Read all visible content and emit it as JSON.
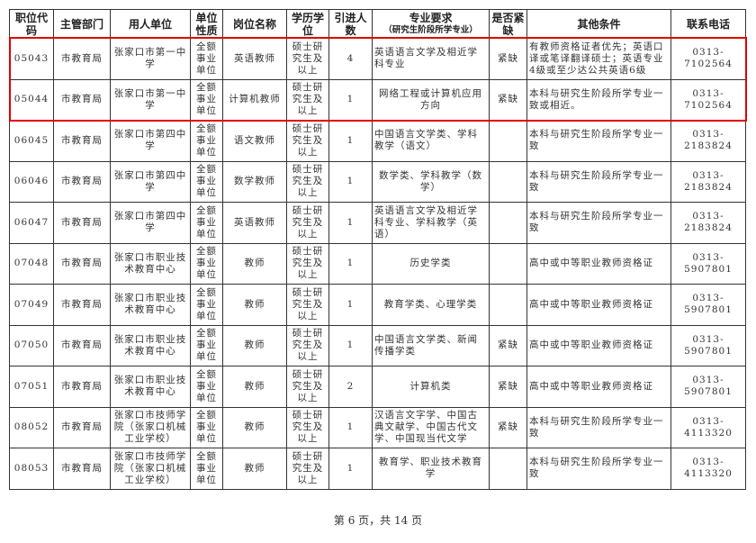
{
  "headers": [
    {
      "main": "职位代码"
    },
    {
      "main": "主管部门"
    },
    {
      "main": "用人单位"
    },
    {
      "main": "单位性质"
    },
    {
      "main": "岗位名称"
    },
    {
      "main": "学历学位"
    },
    {
      "main": "引进人数"
    },
    {
      "main": "专业要求",
      "sub": "（研究生阶段所学专业）"
    },
    {
      "main": "是否紧缺"
    },
    {
      "main": "其他条件"
    },
    {
      "main": "联系电话"
    }
  ],
  "rows": [
    [
      "05043",
      "市教育局",
      "张家口市第一中学",
      "全额事业单位",
      "英语教师",
      "硕士研究生及以上",
      "4",
      "英语语言文学及相近学科专业",
      "紧缺",
      "有教师资格证者优先；英语口译或笔译翻译硕士；英语专业4级或至少达公共英语6级",
      "0313-7102564"
    ],
    [
      "05044",
      "市教育局",
      "张家口市第一中学",
      "全额事业单位",
      "计算机教师",
      "硕士研究生及以上",
      "1",
      "网络工程或计算机应用方向",
      "紧缺",
      "本科与研究生阶段所学专业一致或相近。",
      "0313-7102564"
    ],
    [
      "06045",
      "市教育局",
      "张家口市第四中学",
      "全额事业单位",
      "语文教师",
      "硕士研究生及以上",
      "1",
      "中国语言文学类、学科教学（语文）",
      "",
      "本科与研究生阶段所学专业一致",
      "0313-2183824"
    ],
    [
      "06046",
      "市教育局",
      "张家口市第四中学",
      "全额事业单位",
      "数学教师",
      "硕士研究生及以上",
      "1",
      "数学类、学科教学（数学）",
      "",
      "本科与研究生阶段所学专业一致",
      "0313-2183824"
    ],
    [
      "06047",
      "市教育局",
      "张家口市第四中学",
      "全额事业单位",
      "英语教师",
      "硕士研究生及以上",
      "1",
      "英语语言文学及相近学科专业、学科教学（英语）",
      "",
      "本科与研究生阶段所学专业一致",
      "0313-2183824"
    ],
    [
      "07048",
      "市教育局",
      "张家口市职业技术教育中心",
      "全额事业单位",
      "教师",
      "硕士研究生及以上",
      "1",
      "历史学类",
      "",
      "高中或中等职业教师资格证",
      "0313-5907801"
    ],
    [
      "07049",
      "市教育局",
      "张家口市职业技术教育中心",
      "全额事业单位",
      "教师",
      "硕士研究生及以上",
      "1",
      "教育学类、心理学类",
      "",
      "高中或中等职业教师资格证",
      "0313-5907801"
    ],
    [
      "07050",
      "市教育局",
      "张家口市职业技术教育中心",
      "全额事业单位",
      "教师",
      "硕士研究生及以上",
      "1",
      "中国语言文学类、新闻传播学类",
      "紧缺",
      "高中或中等职业教师资格证",
      "0313-5907801"
    ],
    [
      "07051",
      "市教育局",
      "张家口市职业技术教育中心",
      "全额事业单位",
      "教师",
      "硕士研究生及以上",
      "2",
      "计算机类",
      "紧缺",
      "高中或中等职业教师资格证",
      "0313-5907801"
    ],
    [
      "08052",
      "市教育局",
      "张家口市技师学院（张家口机械工业学校）",
      "全额事业单位",
      "教师",
      "硕士研究生及以上",
      "1",
      "汉语言文字学、中国古典文献学、中国古代文学、中国现当代文学",
      "紧缺",
      "本科与研究生阶段所学专业一致",
      "0313-4113320"
    ],
    [
      "08053",
      "市教育局",
      "张家口市技师学院（张家口机械工业学校）",
      "全额事业单位",
      "教师",
      "硕士研究生及以上",
      "1",
      "教育学、职业技术教育学",
      "",
      "本科与研究生阶段所学专业一致",
      "0313-4113320"
    ]
  ],
  "highlight_color": "#e00000",
  "footer": "第 6 页，共 14 页"
}
